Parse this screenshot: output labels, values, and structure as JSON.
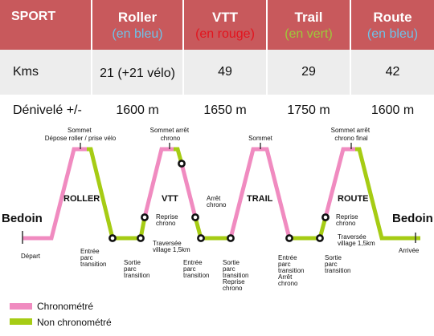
{
  "table": {
    "header": {
      "sport": "SPORT",
      "cols": [
        {
          "name": "Roller",
          "sub": "(en bleu)",
          "sub_color": "#6ec2e8"
        },
        {
          "name": "VTT",
          "sub": "(en rouge)",
          "sub_color": "#e3141e"
        },
        {
          "name": "Trail",
          "sub": "(en vert)",
          "sub_color": "#9ec93a"
        },
        {
          "name": "Route",
          "sub": "(en bleu)",
          "sub_color": "#6ec2e8"
        }
      ]
    },
    "rows": [
      {
        "label": "Kms",
        "values": [
          "21 (+21 vélo)",
          "49",
          "29",
          "42"
        ]
      },
      {
        "label": "Dénivelé +/-",
        "values": [
          "1600 m",
          "1650 m",
          "1750 m",
          "1600 m"
        ]
      }
    ],
    "colors": {
      "header_bg": "#c8595c",
      "row_bg": "#ededed"
    }
  },
  "diagram": {
    "colors": {
      "timed": "#f08bc0",
      "untimed": "#a6cc14",
      "neutral": "#d97fae"
    },
    "start_label": "Bedoin",
    "end_label": "Bedoin",
    "depart": "Départ",
    "arrivee": "Arrivée",
    "segments": {
      "roller": "ROLLER",
      "vtt": "VTT",
      "trail": "TRAIL",
      "route": "ROUTE"
    },
    "top_labels": {
      "roller": [
        "Sommet",
        "Dépose roller / prise vélo"
      ],
      "vtt": [
        "Sommet arrêt",
        "chrono"
      ],
      "trail": [
        "Sommet"
      ],
      "route": [
        "Sommet arrêt",
        "chrono final"
      ]
    },
    "labels": {
      "entree1": [
        "Entrée",
        "parc",
        "transition"
      ],
      "sortie1": [
        "Sortie",
        "parc",
        "transition"
      ],
      "reprise1": [
        "Reprise",
        "chrono"
      ],
      "traversee1": [
        "Traversée",
        "village 1,5km"
      ],
      "arret1": [
        "Arrêt",
        "chrono"
      ],
      "entree2": [
        "Entrée",
        "parc",
        "transition"
      ],
      "sortie2": [
        "Sortie",
        "parc",
        "transition",
        "Reprise",
        "chrono"
      ],
      "entree3": [
        "Entrée",
        "parc",
        "transition",
        "Arrêt",
        "chrono"
      ],
      "reprise2": [
        "Reprise",
        "chrono"
      ],
      "traversee2": [
        "Traversée",
        "village 1,5km"
      ],
      "sortie3": [
        "Sortie",
        "parc",
        "transition"
      ]
    },
    "legend": [
      {
        "label": "Chronométré",
        "color": "#f08bc0"
      },
      {
        "label": "Non chronométré",
        "color": "#a6cc14"
      }
    ]
  }
}
